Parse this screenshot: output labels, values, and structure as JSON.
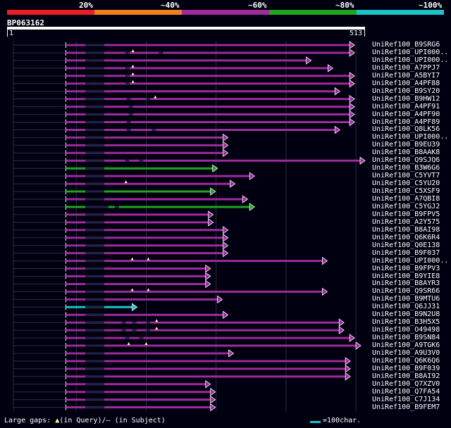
{
  "legend": {
    "colors": [
      "#ec1c24",
      "#f57f20",
      "#9e2a9c",
      "#1fa51f",
      "#19c3c8"
    ],
    "labels": [
      "20%",
      "~40%",
      "~60%",
      "~80%",
      "~100%"
    ]
  },
  "query": {
    "id": "BP063162",
    "start": "1",
    "end": "513"
  },
  "hits": [
    {
      "name": "UniRef100_B9SRG6",
      "end": 498,
      "color": "#9e2a9c",
      "gaps": [],
      "tris": []
    },
    {
      "name": "UniRef100_UPI000..",
      "end": 498,
      "color": "#9e2a9c",
      "gaps": [
        170,
        218
      ],
      "tris": [
        181
      ]
    },
    {
      "name": "UniRef100_UPI000..",
      "end": 436,
      "color": "#9e2a9c",
      "gaps": [],
      "tris": []
    },
    {
      "name": "UniRef100_A7PPJ7",
      "end": 467,
      "color": "#9e2a9c",
      "gaps": [
        170
      ],
      "tris": [
        181
      ]
    },
    {
      "name": "UniRef100_A5BYI7",
      "end": 498,
      "color": "#9e2a9c",
      "gaps": [
        170
      ],
      "tris": [
        181
      ]
    },
    {
      "name": "UniRef100_A4PF88",
      "end": 498,
      "color": "#9e2a9c",
      "gaps": [
        170
      ],
      "tris": [
        181
      ]
    },
    {
      "name": "UniRef100_B9SY20",
      "end": 477,
      "color": "#9e2a9c",
      "gaps": [],
      "tris": []
    },
    {
      "name": "UniRef100_B9HW12",
      "end": 498,
      "color": "#9e2a9c",
      "gaps": [
        172,
        200
      ],
      "tris": [
        213
      ]
    },
    {
      "name": "UniRef100_A4PF91",
      "end": 498,
      "color": "#9e2a9c",
      "gaps": [
        175
      ],
      "tris": []
    },
    {
      "name": "UniRef100_A4PF90",
      "end": 498,
      "color": "#9e2a9c",
      "gaps": [
        175
      ],
      "tris": []
    },
    {
      "name": "UniRef100_A4PF89",
      "end": 498,
      "color": "#9e2a9c",
      "gaps": [
        172
      ],
      "tris": []
    },
    {
      "name": "UniRef100_Q8LK56",
      "end": 477,
      "color": "#9e2a9c",
      "gaps": [
        172,
        208
      ],
      "tris": []
    },
    {
      "name": "UniRef100_UPI000..",
      "end": 317,
      "color": "#9e2a9c",
      "gaps": [],
      "tris": []
    },
    {
      "name": "UniRef100_B9EU39",
      "end": 317,
      "color": "#9e2a9c",
      "gaps": [],
      "tris": []
    },
    {
      "name": "UniRef100_B8AAK8",
      "end": 317,
      "color": "#9e2a9c",
      "gaps": [],
      "tris": []
    },
    {
      "name": "UniRef100_Q9SJQ6",
      "end": 513,
      "color": "#9e2a9c",
      "gaps": [
        170,
        190
      ],
      "tris": []
    },
    {
      "name": "UniRef100_B3W6G6",
      "end": 302,
      "color": "#1fa51f",
      "gaps": [],
      "tris": []
    },
    {
      "name": "UniRef100_C5YVT7",
      "end": 355,
      "color": "#9e2a9c",
      "gaps": [],
      "tris": []
    },
    {
      "name": "UniRef100_C5YU20",
      "end": 327,
      "color": "#9e2a9c",
      "gaps": [],
      "tris": [
        171
      ]
    },
    {
      "name": "UniRef100_C5XSF9",
      "end": 299,
      "color": "#1fa51f",
      "gaps": [],
      "tris": []
    },
    {
      "name": "UniRef100_A7QBI8",
      "end": 345,
      "color": "#9e2a9c",
      "gaps": [],
      "tris": []
    },
    {
      "name": "UniRef100_C5YGJ2",
      "end": 355,
      "color": "#1fa51f",
      "gaps": [
        140,
        155
      ],
      "tris": []
    },
    {
      "name": "UniRef100_B9FPV5",
      "end": 296,
      "color": "#9e2a9c",
      "gaps": [],
      "tris": []
    },
    {
      "name": "UniRef100_A2Y575",
      "end": 296,
      "color": "#9e2a9c",
      "gaps": [],
      "tris": []
    },
    {
      "name": "UniRef100_B8AI98",
      "end": 317,
      "color": "#9e2a9c",
      "gaps": [],
      "tris": []
    },
    {
      "name": "UniRef100_Q6K6R4",
      "end": 317,
      "color": "#9e2a9c",
      "gaps": [],
      "tris": []
    },
    {
      "name": "UniRef100_Q0E138",
      "end": 317,
      "color": "#9e2a9c",
      "gaps": [],
      "tris": []
    },
    {
      "name": "UniRef100_B9F037",
      "end": 317,
      "color": "#9e2a9c",
      "gaps": [],
      "tris": []
    },
    {
      "name": "UniRef100_UPI000..",
      "end": 459,
      "color": "#9e2a9c",
      "gaps": [],
      "tris": [
        180,
        203
      ]
    },
    {
      "name": "UniRef100_B9FPV3",
      "end": 292,
      "color": "#9e2a9c",
      "gaps": [],
      "tris": []
    },
    {
      "name": "UniRef100_B9YIE8",
      "end": 292,
      "color": "#9e2a9c",
      "gaps": [],
      "tris": []
    },
    {
      "name": "UniRef100_B8AYR3",
      "end": 292,
      "color": "#9e2a9c",
      "gaps": [],
      "tris": []
    },
    {
      "name": "UniRef100_Q9SR66",
      "end": 459,
      "color": "#9e2a9c",
      "gaps": [],
      "tris": [
        180,
        203
      ]
    },
    {
      "name": "UniRef100_B9MTU6",
      "end": 309,
      "color": "#9e2a9c",
      "gaps": [],
      "tris": []
    },
    {
      "name": "UniRef100_Q6JJ31",
      "end": 187,
      "color": "#19c3c8",
      "gaps": [],
      "tris": []
    },
    {
      "name": "UniRef100_B9N2U8",
      "end": 317,
      "color": "#9e2a9c",
      "gaps": [],
      "tris": []
    },
    {
      "name": "UniRef100_B3H5X5",
      "end": 483,
      "color": "#9e2a9c",
      "gaps": [
        165,
        180,
        200
      ],
      "tris": [
        215
      ]
    },
    {
      "name": "UniRef100_O49498",
      "end": 483,
      "color": "#9e2a9c",
      "gaps": [
        165,
        180,
        200
      ],
      "tris": [
        215
      ]
    },
    {
      "name": "UniRef100_B9SN84",
      "end": 498,
      "color": "#9e2a9c",
      "gaps": [
        170,
        190
      ],
      "tris": []
    },
    {
      "name": "UniRef100_A9TGK6",
      "end": 507,
      "color": "#9e2a9c",
      "gaps": [],
      "tris": [
        175,
        200
      ]
    },
    {
      "name": "UniRef100_A9U3V0",
      "end": 325,
      "color": "#9e2a9c",
      "gaps": [],
      "tris": []
    },
    {
      "name": "UniRef100_Q6K6Q6",
      "end": 492,
      "color": "#9e2a9c",
      "gaps": [],
      "tris": []
    },
    {
      "name": "UniRef100_B9F039",
      "end": 492,
      "color": "#9e2a9c",
      "gaps": [],
      "tris": []
    },
    {
      "name": "UniRef100_B8AI92",
      "end": 492,
      "color": "#9e2a9c",
      "gaps": [],
      "tris": []
    },
    {
      "name": "UniRef100_Q7XZV0",
      "end": 292,
      "color": "#9e2a9c",
      "gaps": [],
      "tris": []
    },
    {
      "name": "UniRef100_Q7FA54",
      "end": 299,
      "color": "#9e2a9c",
      "gaps": [],
      "tris": []
    },
    {
      "name": "UniRef100_C7J134",
      "end": 299,
      "color": "#9e2a9c",
      "gaps": [],
      "tris": []
    },
    {
      "name": "UniRef100_B9FEM7",
      "end": 299,
      "color": "#9e2a9c",
      "gaps": [],
      "tris": []
    }
  ],
  "footer": {
    "prefix": "Large gaps:",
    "query_symbol": "▲",
    "query_text": "(in Query)/",
    "subject_symbol": "–",
    "subject_text": " (in Subject)",
    "scale_label": "=100char.",
    "scale_color": "#19c3c8"
  }
}
